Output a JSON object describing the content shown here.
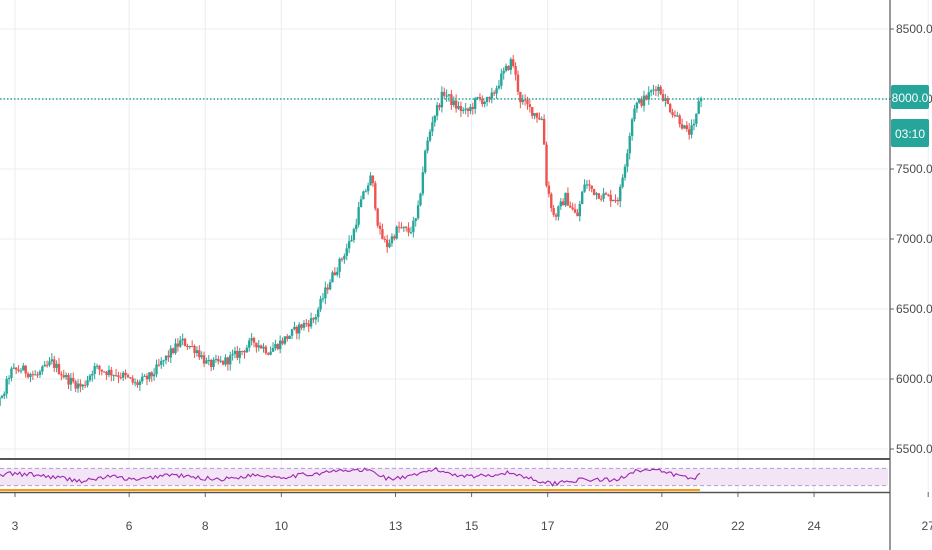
{
  "chart_data": {
    "type": "candlestick",
    "instrument_hint": "price chart with RSI sub-pane",
    "x_ticks": [
      "3",
      "6",
      "8",
      "10",
      "13",
      "15",
      "17",
      "20",
      "22",
      "24",
      "27"
    ],
    "y_ticks": [
      "5500.0",
      "6000.0",
      "6500.0",
      "7000.0",
      "7500.0",
      "8000.0",
      "8500.0"
    ],
    "ylim": [
      5450,
      8650
    ],
    "last_price": 8000.0,
    "last_price_label": "8000.0",
    "countdown_label": "03:10",
    "grid": true,
    "colors": {
      "up": "#26a69a",
      "down": "#ef5350",
      "price_line": "#26a69a",
      "tag_bg": "#26a69a",
      "rsi_line": "#9c27b0",
      "rsi_band": "#f3e5f5",
      "rsi_band_line": "#b39ddb",
      "grid": "#e8edf2",
      "separator": "#555555"
    },
    "price_path": [
      {
        "day": 2.0,
        "price": 5770
      },
      {
        "day": 2.4,
        "price": 5780
      },
      {
        "day": 2.7,
        "price": 5860
      },
      {
        "day": 2.9,
        "price": 6050
      },
      {
        "day": 3.2,
        "price": 6070
      },
      {
        "day": 3.6,
        "price": 6020
      },
      {
        "day": 4.0,
        "price": 6120
      },
      {
        "day": 4.4,
        "price": 6000
      },
      {
        "day": 4.8,
        "price": 5940
      },
      {
        "day": 5.1,
        "price": 6080
      },
      {
        "day": 5.5,
        "price": 6050
      },
      {
        "day": 5.9,
        "price": 6020
      },
      {
        "day": 6.2,
        "price": 5960
      },
      {
        "day": 6.6,
        "price": 6020
      },
      {
        "day": 7.0,
        "price": 6150
      },
      {
        "day": 7.4,
        "price": 6270
      },
      {
        "day": 7.8,
        "price": 6210
      },
      {
        "day": 8.1,
        "price": 6100
      },
      {
        "day": 8.5,
        "price": 6120
      },
      {
        "day": 8.9,
        "price": 6180
      },
      {
        "day": 9.3,
        "price": 6270
      },
      {
        "day": 9.7,
        "price": 6200
      },
      {
        "day": 10.1,
        "price": 6280
      },
      {
        "day": 10.5,
        "price": 6370
      },
      {
        "day": 10.9,
        "price": 6430
      },
      {
        "day": 11.3,
        "price": 6700
      },
      {
        "day": 11.6,
        "price": 6850
      },
      {
        "day": 11.9,
        "price": 7020
      },
      {
        "day": 12.1,
        "price": 7250
      },
      {
        "day": 12.4,
        "price": 7450
      },
      {
        "day": 12.6,
        "price": 7050
      },
      {
        "day": 12.8,
        "price": 6950
      },
      {
        "day": 13.1,
        "price": 7080
      },
      {
        "day": 13.4,
        "price": 7050
      },
      {
        "day": 13.6,
        "price": 7150
      },
      {
        "day": 13.8,
        "price": 7600
      },
      {
        "day": 14.0,
        "price": 7850
      },
      {
        "day": 14.3,
        "price": 8050
      },
      {
        "day": 14.6,
        "price": 7950
      },
      {
        "day": 14.9,
        "price": 7900
      },
      {
        "day": 15.2,
        "price": 8000
      },
      {
        "day": 15.5,
        "price": 7980
      },
      {
        "day": 15.8,
        "price": 8150
      },
      {
        "day": 16.1,
        "price": 8280
      },
      {
        "day": 16.3,
        "price": 8000
      },
      {
        "day": 16.6,
        "price": 7920
      },
      {
        "day": 16.9,
        "price": 7850
      },
      {
        "day": 17.0,
        "price": 7400
      },
      {
        "day": 17.2,
        "price": 7150
      },
      {
        "day": 17.5,
        "price": 7300
      },
      {
        "day": 17.8,
        "price": 7150
      },
      {
        "day": 18.0,
        "price": 7400
      },
      {
        "day": 18.3,
        "price": 7330
      },
      {
        "day": 18.6,
        "price": 7300
      },
      {
        "day": 18.9,
        "price": 7290
      },
      {
        "day": 19.1,
        "price": 7600
      },
      {
        "day": 19.3,
        "price": 7950
      },
      {
        "day": 19.6,
        "price": 8000
      },
      {
        "day": 19.9,
        "price": 8100
      },
      {
        "day": 20.2,
        "price": 7950
      },
      {
        "day": 20.5,
        "price": 7850
      },
      {
        "day": 20.7,
        "price": 7750
      },
      {
        "day": 20.9,
        "price": 7800
      },
      {
        "day": 21.0,
        "price": 8000
      }
    ],
    "rsi_path": [
      {
        "day": 2.0,
        "rsi": 38
      },
      {
        "day": 2.8,
        "rsi": 58
      },
      {
        "day": 3.5,
        "rsi": 55
      },
      {
        "day": 4.2,
        "rsi": 48
      },
      {
        "day": 4.8,
        "rsi": 40
      },
      {
        "day": 5.5,
        "rsi": 52
      },
      {
        "day": 6.2,
        "rsi": 42
      },
      {
        "day": 7.0,
        "rsi": 56
      },
      {
        "day": 7.8,
        "rsi": 48
      },
      {
        "day": 8.5,
        "rsi": 45
      },
      {
        "day": 9.3,
        "rsi": 55
      },
      {
        "day": 10.0,
        "rsi": 50
      },
      {
        "day": 10.8,
        "rsi": 57
      },
      {
        "day": 11.5,
        "rsi": 64
      },
      {
        "day": 12.3,
        "rsi": 66
      },
      {
        "day": 12.8,
        "rsi": 46
      },
      {
        "day": 13.4,
        "rsi": 50
      },
      {
        "day": 14.0,
        "rsi": 68
      },
      {
        "day": 14.6,
        "rsi": 55
      },
      {
        "day": 15.2,
        "rsi": 52
      },
      {
        "day": 16.0,
        "rsi": 60
      },
      {
        "day": 16.5,
        "rsi": 48
      },
      {
        "day": 17.1,
        "rsi": 34
      },
      {
        "day": 17.6,
        "rsi": 42
      },
      {
        "day": 18.2,
        "rsi": 44
      },
      {
        "day": 18.8,
        "rsi": 42
      },
      {
        "day": 19.3,
        "rsi": 66
      },
      {
        "day": 19.9,
        "rsi": 64
      },
      {
        "day": 20.4,
        "rsi": 54
      },
      {
        "day": 20.8,
        "rsi": 46
      },
      {
        "day": 21.0,
        "rsi": 55
      }
    ]
  }
}
